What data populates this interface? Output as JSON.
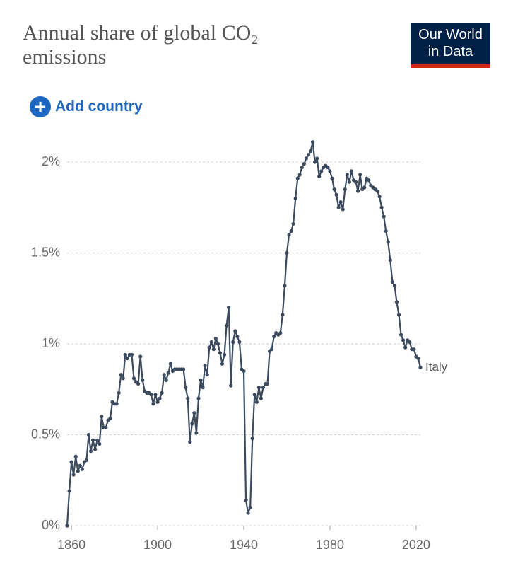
{
  "logo": {
    "line1": "Our World",
    "line2": "in Data"
  },
  "controls": {
    "add_country": "Add country"
  },
  "chart_data": {
    "type": "line",
    "title": "Annual share of global CO₂ emissions",
    "x": [
      1858,
      1859,
      1860,
      1861,
      1862,
      1863,
      1864,
      1865,
      1866,
      1867,
      1868,
      1869,
      1870,
      1871,
      1872,
      1873,
      1874,
      1875,
      1876,
      1877,
      1878,
      1879,
      1880,
      1881,
      1882,
      1883,
      1884,
      1885,
      1886,
      1887,
      1888,
      1889,
      1890,
      1891,
      1892,
      1893,
      1894,
      1895,
      1896,
      1897,
      1898,
      1899,
      1900,
      1901,
      1902,
      1903,
      1904,
      1905,
      1906,
      1907,
      1908,
      1909,
      1910,
      1911,
      1912,
      1913,
      1914,
      1915,
      1916,
      1917,
      1918,
      1919,
      1920,
      1921,
      1922,
      1923,
      1924,
      1925,
      1926,
      1927,
      1928,
      1929,
      1930,
      1931,
      1932,
      1933,
      1934,
      1935,
      1936,
      1937,
      1938,
      1939,
      1940,
      1941,
      1942,
      1943,
      1944,
      1945,
      1946,
      1947,
      1948,
      1949,
      1950,
      1951,
      1952,
      1953,
      1954,
      1955,
      1956,
      1957,
      1958,
      1959,
      1960,
      1961,
      1962,
      1963,
      1964,
      1965,
      1966,
      1967,
      1968,
      1969,
      1970,
      1971,
      1972,
      1973,
      1974,
      1975,
      1976,
      1977,
      1978,
      1979,
      1980,
      1981,
      1982,
      1983,
      1984,
      1985,
      1986,
      1987,
      1988,
      1989,
      1990,
      1991,
      1992,
      1993,
      1994,
      1995,
      1996,
      1997,
      1998,
      1999,
      2000,
      2001,
      2002,
      2003,
      2004,
      2005,
      2006,
      2007,
      2008,
      2009,
      2010,
      2011,
      2012,
      2013,
      2014,
      2015,
      2016,
      2017,
      2018,
      2019,
      2020,
      2021,
      2022
    ],
    "series": [
      {
        "name": "Italy",
        "color": "#3b4a5e",
        "values": [
          0,
          0.19,
          0.35,
          0.28,
          0.38,
          0.3,
          0.33,
          0.31,
          0.35,
          0.36,
          0.5,
          0.41,
          0.47,
          0.42,
          0.47,
          0.45,
          0.6,
          0.54,
          0.54,
          0.58,
          0.59,
          0.68,
          0.67,
          0.67,
          0.73,
          0.83,
          0.81,
          0.94,
          0.92,
          0.94,
          0.94,
          0.81,
          0.79,
          0.78,
          0.93,
          0.8,
          0.74,
          0.73,
          0.73,
          0.72,
          0.67,
          0.72,
          0.68,
          0.7,
          0.73,
          0.83,
          0.8,
          0.84,
          0.89,
          0.85,
          0.86,
          0.86,
          0.86,
          0.86,
          0.86,
          0.76,
          0.7,
          0.46,
          0.56,
          0.62,
          0.51,
          0.7,
          0.8,
          0.76,
          0.88,
          0.83,
          0.98,
          1.01,
          0.97,
          1.03,
          1.0,
          0.95,
          0.89,
          0.94,
          1.1,
          1.2,
          0.77,
          1.01,
          1.07,
          1.04,
          1.01,
          0.86,
          0.85,
          0.14,
          0.07,
          0.1,
          0.48,
          0.72,
          0.68,
          0.76,
          0.7,
          0.76,
          0.78,
          0.78,
          0.96,
          0.97,
          1.04,
          1.06,
          1.05,
          1.06,
          1.16,
          1.32,
          1.5,
          1.6,
          1.62,
          1.66,
          1.8,
          1.91,
          1.93,
          1.97,
          1.99,
          2.02,
          2.04,
          2.06,
          2.11,
          2.0,
          2.02,
          1.92,
          1.95,
          1.97,
          1.98,
          1.97,
          1.95,
          1.91,
          1.85,
          1.82,
          1.75,
          1.78,
          1.74,
          1.85,
          1.93,
          1.89,
          1.95,
          1.9,
          1.89,
          1.84,
          1.93,
          1.85,
          1.86,
          1.91,
          1.9,
          1.87,
          1.86,
          1.85,
          1.84,
          1.81,
          1.75,
          1.7,
          1.62,
          1.56,
          1.46,
          1.34,
          1.32,
          1.23,
          1.16,
          1.05,
          1.02,
          0.98,
          1.02,
          1.01,
          0.97,
          0.97,
          0.93,
          0.92,
          0.87
        ]
      }
    ],
    "xlim": [
      1858,
      2022
    ],
    "xticks": [
      1860,
      1900,
      1940,
      1980,
      2020
    ],
    "ylim": [
      0,
      2.12
    ],
    "yticks": [
      {
        "value": 0,
        "label": "0%"
      },
      {
        "value": 0.5,
        "label": "0.5%"
      },
      {
        "value": 1,
        "label": "1%"
      },
      {
        "value": 1.5,
        "label": "1.5%"
      },
      {
        "value": 2,
        "label": "2%"
      }
    ],
    "grid": true
  }
}
